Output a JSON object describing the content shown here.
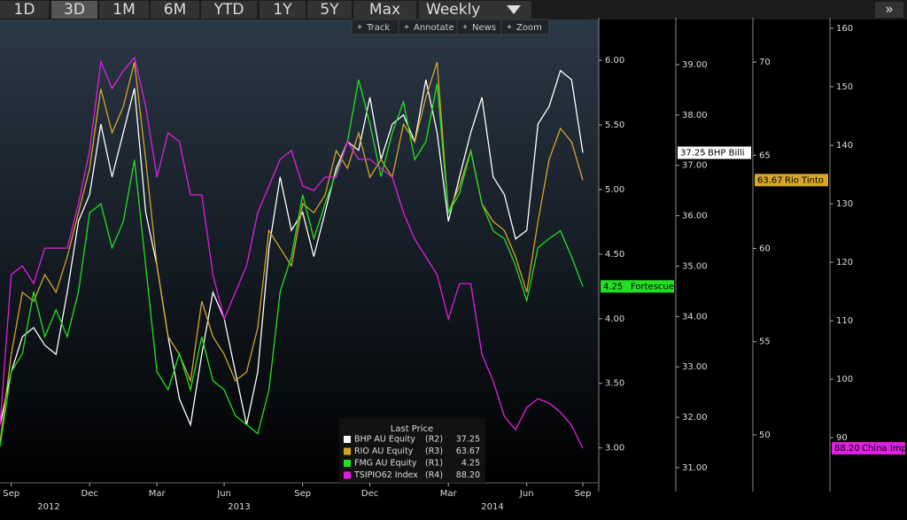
{
  "toolbar": {
    "buttons": [
      "1D",
      "3D",
      "1M",
      "6M",
      "YTD",
      "1Y",
      "5Y",
      "Max",
      "Weekly"
    ],
    "selected_button": 1,
    "expand": "»",
    "tools": [
      "Track",
      "Annotate",
      "News",
      "Zoom"
    ]
  },
  "chart_data": {
    "type": "line",
    "categories": [
      null,
      "Sep",
      null,
      null,
      null,
      null,
      null,
      null,
      "Dec",
      null,
      null,
      null,
      null,
      null,
      "Mar",
      null,
      null,
      null,
      null,
      null,
      "Jun",
      null,
      null,
      null,
      null,
      null,
      null,
      "Sep",
      null,
      null,
      null,
      null,
      null,
      "Dec",
      null,
      null,
      null,
      null,
      null,
      null,
      "Mar",
      null,
      null,
      null,
      null,
      null,
      null,
      "Jun",
      null,
      null,
      null,
      null,
      "Sep"
    ],
    "year_labels": [
      "2012",
      "2013",
      "2014"
    ],
    "ylim": [
      2.73,
      6.33
    ],
    "yticks": [
      {
        "value": 3,
        "label": "3.00"
      },
      {
        "value": 3.5,
        "label": "3.50"
      },
      {
        "value": 4,
        "label": "4.00"
      },
      {
        "value": 4.5,
        "label": "4.50"
      },
      {
        "value": 5,
        "label": "5.00"
      },
      {
        "value": 5.5,
        "label": "5.50"
      },
      {
        "value": 6,
        "label": "6.00"
      }
    ],
    "y2lim": [
      30.7,
      39.93
    ],
    "y2ticks": [
      {
        "value": 31,
        "label": "31.00"
      },
      {
        "value": 32,
        "label": "32.00"
      },
      {
        "value": 33,
        "label": "33.00"
      },
      {
        "value": 34,
        "label": "34.00"
      },
      {
        "value": 35,
        "label": "35.00"
      },
      {
        "value": 36,
        "label": "36.00"
      },
      {
        "value": 37,
        "label": "37.00"
      },
      {
        "value": 38,
        "label": "38.00"
      },
      {
        "value": 39,
        "label": "39.00"
      }
    ],
    "y3lim": [
      47.43,
      72.38
    ],
    "y3ticks": [
      50,
      55,
      60,
      65,
      70
    ],
    "y4lim": [
      82.3,
      161.8
    ],
    "y4ticks": [
      90,
      100,
      110,
      120,
      130,
      140,
      150,
      160
    ],
    "legend_title": "Last Price",
    "series": [
      {
        "name": "BHP AU Equity",
        "axis_label": "(R2)",
        "axis": "y2",
        "color": "#ffffff",
        "tag": {
          "label": "37.25",
          "text": "BHP Billi"
        },
        "values": [
          31.85,
          32.9,
          33.6,
          33.78,
          33.43,
          33.25,
          34.48,
          35.89,
          36.42,
          37.82,
          36.77,
          37.65,
          38.53,
          36.07,
          35.01,
          33.6,
          32.37,
          31.85,
          33.25,
          34.48,
          33.96,
          32.9,
          31.85,
          32.9,
          35.36,
          36.77,
          35.71,
          36.07,
          35.19,
          36.07,
          36.94,
          37.47,
          37.3,
          38.35,
          37.12,
          37.82,
          38.0,
          37.47,
          38.7,
          37.65,
          35.89,
          36.77,
          37.65,
          38.35,
          36.77,
          36.42,
          35.54,
          35.71,
          37.82,
          38.17,
          38.88,
          38.7,
          37.25
        ]
      },
      {
        "name": "RIO AU Equity",
        "axis_label": "(R3)",
        "axis": "y3",
        "color": "#d4a62a",
        "tag": {
          "label": "63.67",
          "text": "Rio Tinto"
        },
        "values": [
          49.57,
          54.32,
          57.65,
          57.17,
          58.6,
          57.65,
          59.55,
          61.92,
          64.3,
          68.57,
          66.2,
          67.62,
          70.0,
          64.77,
          59.07,
          55.27,
          54.32,
          52.9,
          57.17,
          55.27,
          54.32,
          52.9,
          53.37,
          55.75,
          60.97,
          60.02,
          59.07,
          62.4,
          61.92,
          62.87,
          65.25,
          64.3,
          66.2,
          63.82,
          64.77,
          63.82,
          66.67,
          65.72,
          68.1,
          70.0,
          61.92,
          63.35,
          65.25,
          62.4,
          61.45,
          60.97,
          59.55,
          57.65,
          61.45,
          64.77,
          66.44,
          65.72,
          63.67
        ]
      },
      {
        "name": "FMG AU Equity",
        "axis_label": "(R1)",
        "axis": "y",
        "color": "#22e022",
        "tag": {
          "label": "4.25",
          "text": "Fortescue"
        },
        "values": [
          3.01,
          3.59,
          3.73,
          4.21,
          3.86,
          4.07,
          3.86,
          4.21,
          4.82,
          4.89,
          4.55,
          4.75,
          5.23,
          4.41,
          3.59,
          3.45,
          3.73,
          3.45,
          3.86,
          3.52,
          3.45,
          3.25,
          3.18,
          3.11,
          3.45,
          4.21,
          4.48,
          4.96,
          4.62,
          4.89,
          5.13,
          5.37,
          5.85,
          5.51,
          5.1,
          5.44,
          5.68,
          5.23,
          5.37,
          5.82,
          4.82,
          4.97,
          5.3,
          4.89,
          4.68,
          4.62,
          4.41,
          4.14,
          4.55,
          4.62,
          4.68,
          4.48,
          4.25
        ]
      },
      {
        "name": "TSIPIO62 Index",
        "axis_label": "(R4)",
        "axis": "y4",
        "color": "#e020e0",
        "tag": {
          "label": "88.20",
          "text": "China Imp"
        },
        "values": [
          92.12,
          117.88,
          119.39,
          116.36,
          122.42,
          122.42,
          122.42,
          130,
          139.09,
          154.24,
          149.7,
          152.73,
          155,
          146.67,
          134.55,
          142.12,
          140.61,
          131.52,
          131.52,
          117.88,
          110.3,
          114.85,
          119.39,
          128.48,
          133.03,
          137.58,
          139.09,
          133.03,
          132.27,
          134.55,
          134.55,
          140.61,
          137.58,
          137.58,
          136.06,
          134.55,
          128.48,
          123.94,
          120.91,
          117.88,
          110.3,
          116.36,
          116.36,
          104.24,
          99.7,
          93.64,
          91.36,
          95.15,
          96.67,
          95.91,
          94.39,
          92.12,
          88.2
        ]
      }
    ]
  }
}
